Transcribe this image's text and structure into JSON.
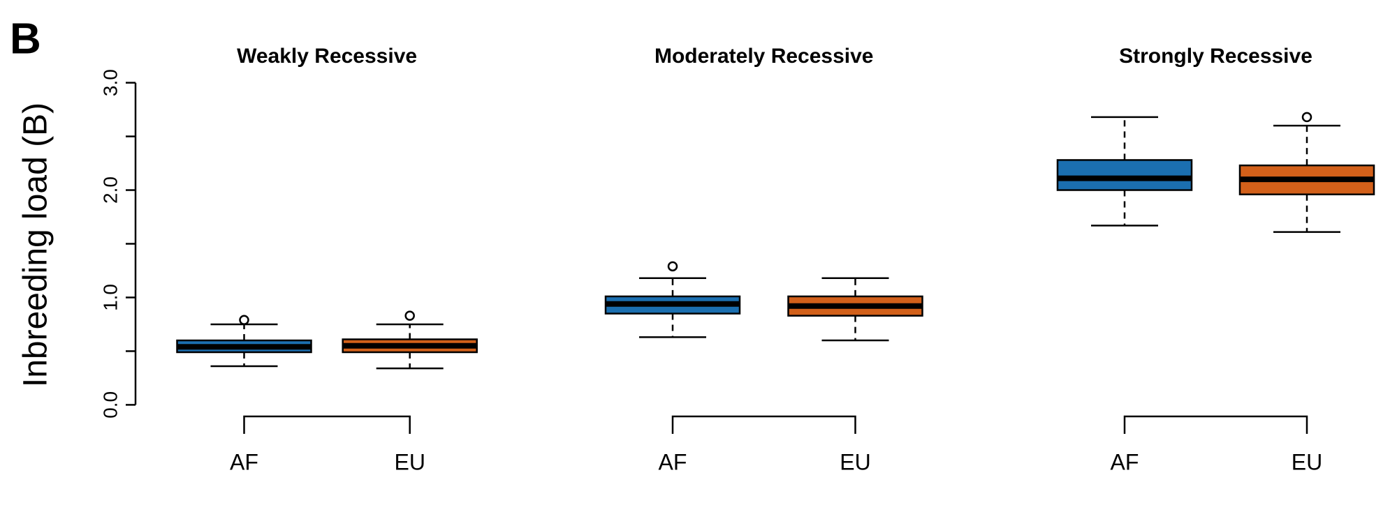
{
  "chart_data": {
    "type": "box",
    "panel_label": "B",
    "ylabel": "Inbreeding load (B)",
    "ylim": [
      0,
      3
    ],
    "yticks": [
      {
        "value": 0,
        "label": "0.0"
      },
      {
        "value": 0.5,
        "label": null
      },
      {
        "value": 1,
        "label": "1.0"
      },
      {
        "value": 1.5,
        "label": null
      },
      {
        "value": 2,
        "label": "2.0"
      },
      {
        "value": 2.5,
        "label": null
      },
      {
        "value": 3,
        "label": "3.0"
      }
    ],
    "colors": [
      "#1b6fb0",
      "#d2601a"
    ],
    "groups": [
      {
        "title": "Weakly Recessive",
        "categories": [
          "AF",
          "EU"
        ],
        "boxes": [
          {
            "whislo": 0.36,
            "q1": 0.49,
            "med": 0.54,
            "q3": 0.6,
            "whishi": 0.75,
            "fliers": [
              0.79
            ]
          },
          {
            "whislo": 0.34,
            "q1": 0.49,
            "med": 0.55,
            "q3": 0.61,
            "whishi": 0.75,
            "fliers": [
              0.83
            ]
          }
        ]
      },
      {
        "title": "Moderately Recessive",
        "categories": [
          "AF",
          "EU"
        ],
        "boxes": [
          {
            "whislo": 0.63,
            "q1": 0.85,
            "med": 0.94,
            "q3": 1.01,
            "whishi": 1.18,
            "fliers": [
              1.29
            ]
          },
          {
            "whislo": 0.6,
            "q1": 0.83,
            "med": 0.92,
            "q3": 1.01,
            "whishi": 1.18,
            "fliers": []
          }
        ]
      },
      {
        "title": "Strongly Recessive",
        "categories": [
          "AF",
          "EU"
        ],
        "boxes": [
          {
            "whislo": 1.67,
            "q1": 2.0,
            "med": 2.11,
            "q3": 2.28,
            "whishi": 2.68,
            "fliers": []
          },
          {
            "whislo": 1.61,
            "q1": 1.96,
            "med": 2.1,
            "q3": 2.23,
            "whishi": 2.6,
            "fliers": [
              2.68
            ]
          }
        ]
      }
    ]
  }
}
